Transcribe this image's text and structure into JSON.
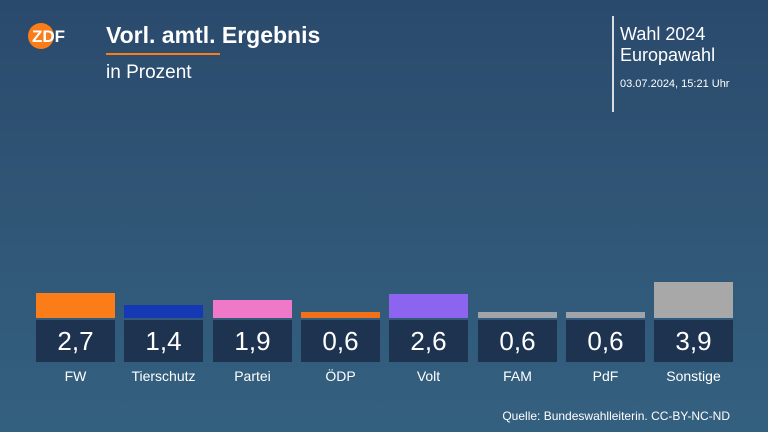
{
  "header": {
    "logo_text": "ZDF",
    "title": "Vorl. amtl. Ergebnis",
    "subtitle": "in Prozent",
    "election_line1": "Wahl 2024",
    "election_line2": "Europawahl",
    "timestamp": "03.07.2024, 15:21 Uhr"
  },
  "footer": {
    "source": "Quelle: Bundeswahlleiterin. CC-BY-NC-ND"
  },
  "colors": {
    "accent": "#fa7d19",
    "value_box": "#1d3350"
  },
  "chart_data": {
    "type": "bar",
    "title": "Vorl. amtl. Ergebnis",
    "subtitle": "in Prozent",
    "categories": [
      "FW",
      "Tierschutz",
      "Partei",
      "ÖDP",
      "Volt",
      "FAM",
      "PdF",
      "Sonstige"
    ],
    "values": [
      2.7,
      1.4,
      1.9,
      0.6,
      2.6,
      0.6,
      0.6,
      3.9
    ],
    "value_labels": [
      "2,7",
      "1,4",
      "1,9",
      "0,6",
      "2,6",
      "0,6",
      "0,6",
      "3,9"
    ],
    "colors": [
      "#fa7d19",
      "#1538b4",
      "#f078c8",
      "#f27018",
      "#8c64f0",
      "#a0a4aa",
      "#a0a4aa",
      "#a8a8a8"
    ],
    "ylim": [
      0,
      3.9
    ],
    "xlabel": "",
    "ylabel": ""
  }
}
